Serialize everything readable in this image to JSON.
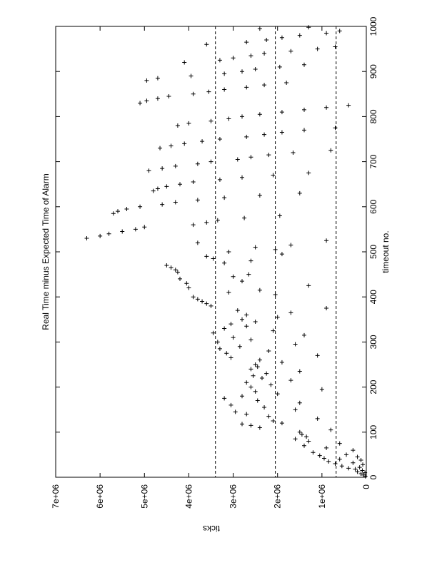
{
  "chart_data": {
    "type": "scatter",
    "title": "Real Time minus Expected Time of Alarm",
    "xlabel": "timeout no.",
    "ylabel": "ticks",
    "x_ticks": [
      "0",
      "100",
      "200",
      "300",
      "400",
      "500",
      "600",
      "700",
      "800",
      "900",
      "1000"
    ],
    "y_ticks": [
      "0",
      "1e+06",
      "2e+06",
      "3e+06",
      "4e+06",
      "5e+06",
      "6e+06",
      "7e+06"
    ],
    "xlim": [
      0,
      1000
    ],
    "ylim": [
      0,
      7000000
    ],
    "orientation": "rotated 90 degrees counter-clockwise (x axis runs bottom to top on the page)",
    "marker": "+",
    "reference_lines": [
      {
        "style": "dashed",
        "y": 3400000
      },
      {
        "style": "dashed",
        "y": 2050000
      },
      {
        "style": "dashed",
        "y": 680000
      }
    ],
    "series": [
      {
        "points": [
          [
            2,
            20000
          ],
          [
            5,
            60000
          ],
          [
            8,
            120000
          ],
          [
            10,
            30000
          ],
          [
            12,
            200000
          ],
          [
            15,
            90000
          ],
          [
            18,
            250000
          ],
          [
            20,
            400000
          ],
          [
            22,
            150000
          ],
          [
            25,
            550000
          ],
          [
            28,
            80000
          ],
          [
            30,
            700000
          ],
          [
            32,
            300000
          ],
          [
            35,
            850000
          ],
          [
            38,
            120000
          ],
          [
            40,
            600000
          ],
          [
            42,
            950000
          ],
          [
            45,
            200000
          ],
          [
            48,
            1050000
          ],
          [
            50,
            450000
          ],
          [
            55,
            1200000
          ],
          [
            60,
            300000
          ],
          [
            65,
            900000
          ],
          [
            70,
            1400000
          ],
          [
            75,
            600000
          ],
          [
            80,
            1300000
          ],
          [
            85,
            1600000
          ],
          [
            90,
            1350000
          ],
          [
            95,
            1450000
          ],
          [
            100,
            1500000
          ],
          [
            105,
            800000
          ],
          [
            110,
            2400000
          ],
          [
            115,
            2600000
          ],
          [
            118,
            2800000
          ],
          [
            120,
            1900000
          ],
          [
            125,
            2100000
          ],
          [
            130,
            1100000
          ],
          [
            135,
            2200000
          ],
          [
            140,
            2700000
          ],
          [
            145,
            2950000
          ],
          [
            150,
            1600000
          ],
          [
            155,
            2300000
          ],
          [
            160,
            3050000
          ],
          [
            165,
            1500000
          ],
          [
            170,
            2450000
          ],
          [
            175,
            3200000
          ],
          [
            180,
            2800000
          ],
          [
            185,
            2000000
          ],
          [
            190,
            2500000
          ],
          [
            195,
            1000000
          ],
          [
            200,
            2600000
          ],
          [
            205,
            2150000
          ],
          [
            210,
            2700000
          ],
          [
            215,
            1700000
          ],
          [
            220,
            2350000
          ],
          [
            225,
            2550000
          ],
          [
            230,
            2250000
          ],
          [
            235,
            1500000
          ],
          [
            240,
            2600000
          ],
          [
            245,
            2450000
          ],
          [
            250,
            2500000
          ],
          [
            255,
            1900000
          ],
          [
            260,
            2400000
          ],
          [
            265,
            3050000
          ],
          [
            270,
            1100000
          ],
          [
            275,
            3150000
          ],
          [
            280,
            2200000
          ],
          [
            285,
            3300000
          ],
          [
            290,
            2850000
          ],
          [
            295,
            1600000
          ],
          [
            300,
            3350000
          ],
          [
            305,
            2600000
          ],
          [
            310,
            3000000
          ],
          [
            315,
            1400000
          ],
          [
            320,
            3450000
          ],
          [
            325,
            2100000
          ],
          [
            330,
            3200000
          ],
          [
            335,
            2700000
          ],
          [
            340,
            3050000
          ],
          [
            345,
            2500000
          ],
          [
            350,
            2800000
          ],
          [
            355,
            2000000
          ],
          [
            360,
            2700000
          ],
          [
            365,
            1700000
          ],
          [
            370,
            2900000
          ],
          [
            375,
            900000
          ],
          [
            380,
            3500000
          ],
          [
            385,
            3600000
          ],
          [
            390,
            3700000
          ],
          [
            395,
            3800000
          ],
          [
            400,
            3900000
          ],
          [
            405,
            2050000
          ],
          [
            410,
            3100000
          ],
          [
            415,
            2400000
          ],
          [
            420,
            4000000
          ],
          [
            425,
            1300000
          ],
          [
            430,
            4050000
          ],
          [
            435,
            2800000
          ],
          [
            440,
            4200000
          ],
          [
            445,
            3000000
          ],
          [
            450,
            2650000
          ],
          [
            455,
            4250000
          ],
          [
            460,
            4300000
          ],
          [
            465,
            4400000
          ],
          [
            470,
            4500000
          ],
          [
            475,
            3200000
          ],
          [
            480,
            2600000
          ],
          [
            485,
            3450000
          ],
          [
            490,
            3600000
          ],
          [
            495,
            1900000
          ],
          [
            500,
            3100000
          ],
          [
            505,
            2050000
          ],
          [
            510,
            2500000
          ],
          [
            515,
            1700000
          ],
          [
            520,
            3800000
          ],
          [
            525,
            900000
          ],
          [
            530,
            6300000
          ],
          [
            535,
            6000000
          ],
          [
            540,
            5800000
          ],
          [
            545,
            5500000
          ],
          [
            550,
            5200000
          ],
          [
            555,
            5000000
          ],
          [
            560,
            3900000
          ],
          [
            565,
            3600000
          ],
          [
            570,
            3350000
          ],
          [
            575,
            2750000
          ],
          [
            580,
            1950000
          ],
          [
            585,
            5700000
          ],
          [
            590,
            5600000
          ],
          [
            595,
            5400000
          ],
          [
            600,
            5100000
          ],
          [
            605,
            4600000
          ],
          [
            610,
            4300000
          ],
          [
            615,
            3800000
          ],
          [
            620,
            3200000
          ],
          [
            625,
            2400000
          ],
          [
            630,
            1500000
          ],
          [
            635,
            4800000
          ],
          [
            640,
            4700000
          ],
          [
            645,
            4500000
          ],
          [
            650,
            4200000
          ],
          [
            655,
            3900000
          ],
          [
            660,
            3300000
          ],
          [
            665,
            2800000
          ],
          [
            670,
            2100000
          ],
          [
            675,
            1300000
          ],
          [
            680,
            4900000
          ],
          [
            685,
            4600000
          ],
          [
            690,
            4300000
          ],
          [
            695,
            3800000
          ],
          [
            700,
            3500000
          ],
          [
            705,
            2900000
          ],
          [
            710,
            2600000
          ],
          [
            715,
            2200000
          ],
          [
            720,
            1650000
          ],
          [
            725,
            800000
          ],
          [
            730,
            4650000
          ],
          [
            735,
            4400000
          ],
          [
            740,
            4100000
          ],
          [
            745,
            3700000
          ],
          [
            750,
            3300000
          ],
          [
            755,
            2700000
          ],
          [
            760,
            2300000
          ],
          [
            765,
            1900000
          ],
          [
            770,
            1400000
          ],
          [
            775,
            700000
          ],
          [
            780,
            4250000
          ],
          [
            785,
            4000000
          ],
          [
            790,
            3500000
          ],
          [
            795,
            3100000
          ],
          [
            800,
            2800000
          ],
          [
            805,
            2400000
          ],
          [
            810,
            1900000
          ],
          [
            815,
            1400000
          ],
          [
            820,
            900000
          ],
          [
            825,
            400000
          ],
          [
            830,
            5100000
          ],
          [
            835,
            4950000
          ],
          [
            840,
            4700000
          ],
          [
            845,
            4450000
          ],
          [
            850,
            3900000
          ],
          [
            855,
            3550000
          ],
          [
            860,
            3200000
          ],
          [
            865,
            2700000
          ],
          [
            870,
            2300000
          ],
          [
            875,
            1800000
          ],
          [
            880,
            4950000
          ],
          [
            885,
            4700000
          ],
          [
            890,
            3950000
          ],
          [
            895,
            3200000
          ],
          [
            900,
            2800000
          ],
          [
            905,
            2500000
          ],
          [
            910,
            1950000
          ],
          [
            915,
            1400000
          ],
          [
            920,
            4100000
          ],
          [
            925,
            3300000
          ],
          [
            930,
            3000000
          ],
          [
            935,
            2600000
          ],
          [
            940,
            2300000
          ],
          [
            945,
            1700000
          ],
          [
            950,
            1100000
          ],
          [
            955,
            700000
          ],
          [
            960,
            3600000
          ],
          [
            965,
            2700000
          ],
          [
            970,
            2250000
          ],
          [
            975,
            1900000
          ],
          [
            980,
            1500000
          ],
          [
            985,
            900000
          ],
          [
            990,
            600000
          ],
          [
            995,
            2400000
          ],
          [
            998,
            1300000
          ]
        ]
      }
    ]
  }
}
